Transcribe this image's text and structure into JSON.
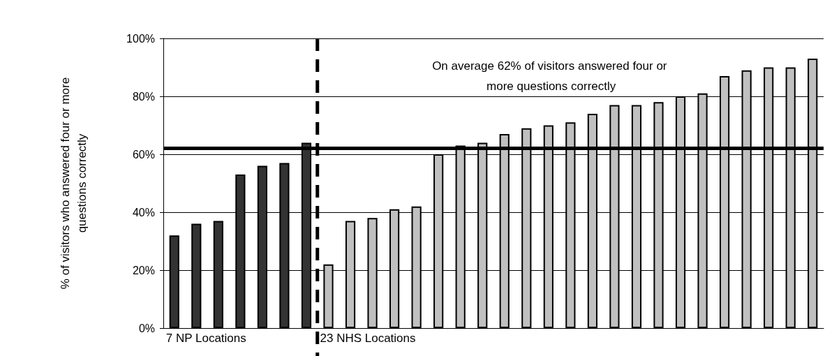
{
  "chart_data": {
    "type": "bar",
    "ylabel": "% of visitors who answered four or more questions correctly",
    "categories": [
      null,
      null,
      null,
      null,
      null,
      null,
      null,
      null,
      null,
      null,
      null,
      null,
      null,
      null,
      null,
      null,
      null,
      null,
      null,
      null,
      null,
      null,
      null,
      null,
      null,
      null,
      null,
      null,
      null,
      null
    ],
    "values": [
      32,
      36,
      37,
      53,
      56,
      57,
      64,
      22,
      37,
      38,
      41,
      42,
      60,
      63,
      64,
      67,
      69,
      70,
      71,
      74,
      77,
      77,
      78,
      80,
      81,
      87,
      89,
      90,
      90,
      93
    ],
    "colors": [
      "#333333",
      "#333333",
      "#333333",
      "#333333",
      "#333333",
      "#333333",
      "#333333",
      "#c0c0c0",
      "#c0c0c0",
      "#c0c0c0",
      "#c0c0c0",
      "#c0c0c0",
      "#c0c0c0",
      "#c0c0c0",
      "#c0c0c0",
      "#c0c0c0",
      "#c0c0c0",
      "#c0c0c0",
      "#c0c0c0",
      "#c0c0c0",
      "#c0c0c0",
      "#c0c0c0",
      "#c0c0c0",
      "#c0c0c0",
      "#c0c0c0",
      "#c0c0c0",
      "#c0c0c0",
      "#c0c0c0",
      "#c0c0c0",
      "#c0c0c0"
    ],
    "ylim": [
      0,
      100
    ],
    "yticks": [
      {
        "value": 0,
        "label": "0%"
      },
      {
        "value": 20,
        "label": "20%"
      },
      {
        "value": 40,
        "label": "40%"
      },
      {
        "value": 60,
        "label": "60%"
      },
      {
        "value": 80,
        "label": "80%"
      },
      {
        "value": 100,
        "label": "100%"
      }
    ],
    "grid": "y",
    "ref_lines": [
      {
        "axis": "y",
        "value": 62,
        "color": "#000000",
        "line_style": "solid"
      }
    ],
    "annotations": [
      "On average 62% of visitors answered four or more questions correctly",
      "7 NP Locations",
      "23 NHS Locations"
    ]
  }
}
